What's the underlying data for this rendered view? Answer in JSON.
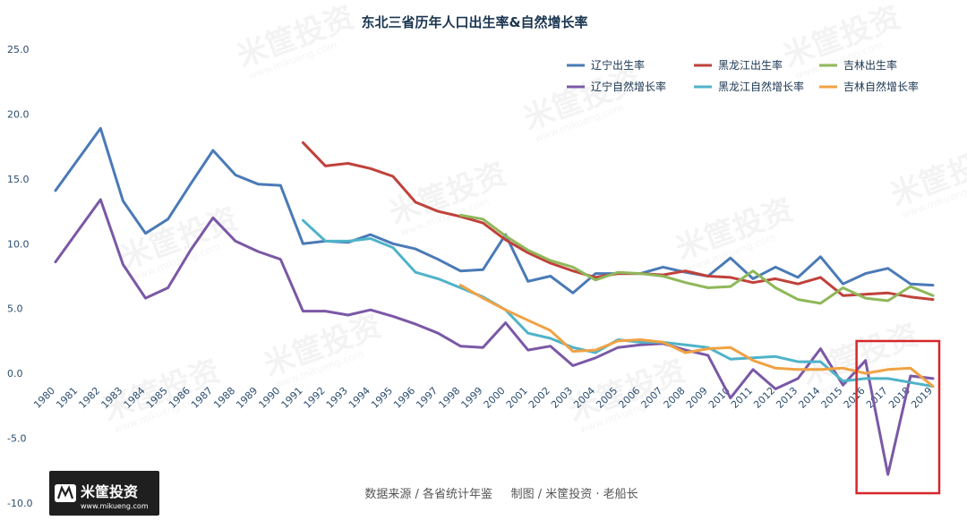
{
  "chart_data": {
    "type": "line",
    "title": "东北三省历年人口出生率&自然增长率",
    "source_note": "数据来源 / 各省统计年鉴     制图 / 米筐投资 · 老船长",
    "brand": {
      "name": "米筐投资",
      "url": "www.mikueng.com"
    },
    "watermark": {
      "name": "米筐投资",
      "url": "www.mikueng.com"
    },
    "ylim": [
      -10,
      25
    ],
    "yticks": [
      "25.0",
      "20.0",
      "15.0",
      "10.0",
      "5.0",
      "0.0",
      "-5.0",
      "-10.0"
    ],
    "x": [
      "1980",
      "1981",
      "1982",
      "1983",
      "1984",
      "1985",
      "1986",
      "1987",
      "1988",
      "1989",
      "1990",
      "1991",
      "1992",
      "1993",
      "1994",
      "1995",
      "1996",
      "1997",
      "1998",
      "1999",
      "2000",
      "2001",
      "2002",
      "2003",
      "2004",
      "2005",
      "2006",
      "2007",
      "2008",
      "2009",
      "2010",
      "2011",
      "2012",
      "2013",
      "2014",
      "2015",
      "2016",
      "2017",
      "2018",
      "2019"
    ],
    "grid": false,
    "legend": "top-right",
    "highlight_box": {
      "from": "2016",
      "to": "2019",
      "color": "#d7262b"
    },
    "series": [
      {
        "name": "辽宁出生率",
        "color": "#4a7ab7",
        "values": [
          14.1,
          16.5,
          18.9,
          13.3,
          10.8,
          11.9,
          14.6,
          17.2,
          15.3,
          14.6,
          14.5,
          10.0,
          10.2,
          10.1,
          10.7,
          10.0,
          9.6,
          8.8,
          7.9,
          8.0,
          10.7,
          7.1,
          7.5,
          6.2,
          7.7,
          7.7,
          7.7,
          8.2,
          7.8,
          7.5,
          8.9,
          7.3,
          8.2,
          7.4,
          9.0,
          6.9,
          7.7,
          8.1,
          6.9,
          6.8
        ]
      },
      {
        "name": "黑龙江出生率",
        "color": "#c0413b",
        "values": [
          null,
          null,
          null,
          null,
          null,
          null,
          null,
          null,
          null,
          null,
          null,
          17.8,
          16.0,
          16.2,
          15.8,
          15.2,
          13.2,
          12.5,
          12.1,
          11.6,
          10.3,
          9.3,
          8.5,
          7.9,
          7.4,
          7.7,
          7.7,
          7.6,
          7.9,
          7.5,
          7.4,
          7.0,
          7.3,
          6.9,
          7.4,
          6.0,
          6.1,
          6.2,
          5.9,
          5.7
        ]
      },
      {
        "name": "吉林出生率",
        "color": "#8fb85a",
        "values": [
          null,
          null,
          null,
          null,
          null,
          null,
          null,
          null,
          null,
          null,
          null,
          null,
          null,
          null,
          null,
          null,
          null,
          null,
          12.2,
          11.9,
          10.6,
          9.5,
          8.7,
          8.2,
          7.2,
          7.8,
          7.7,
          7.5,
          7.0,
          6.6,
          6.7,
          7.9,
          6.6,
          5.7,
          5.4,
          6.6,
          5.8,
          5.6,
          6.7,
          6.0
        ]
      },
      {
        "name": "辽宁自然增长率",
        "color": "#7b58a6",
        "values": [
          8.6,
          11.0,
          13.4,
          8.4,
          5.8,
          6.6,
          9.5,
          12.0,
          10.2,
          9.4,
          8.8,
          4.8,
          4.8,
          4.5,
          4.9,
          4.4,
          3.8,
          3.1,
          2.1,
          2.0,
          3.9,
          1.8,
          2.1,
          0.6,
          1.2,
          2.0,
          2.2,
          2.3,
          1.8,
          1.4,
          -1.9,
          0.3,
          -1.2,
          -0.4,
          1.9,
          -0.9,
          1.0,
          -7.8,
          -0.2,
          -0.4
        ]
      },
      {
        "name": "黑龙江自然增长率",
        "color": "#4fb3c9",
        "values": [
          null,
          null,
          null,
          null,
          null,
          null,
          null,
          null,
          null,
          null,
          null,
          11.8,
          10.2,
          10.2,
          10.4,
          9.7,
          7.8,
          7.3,
          6.6,
          5.9,
          4.9,
          3.1,
          2.7,
          2.0,
          1.6,
          2.6,
          2.4,
          2.4,
          2.2,
          2.0,
          1.1,
          1.2,
          1.3,
          0.9,
          0.9,
          -0.6,
          -0.4,
          -0.4,
          -0.7,
          -1.0
        ]
      },
      {
        "name": "吉林自然增长率",
        "color": "#f0a244",
        "values": [
          null,
          null,
          null,
          null,
          null,
          null,
          null,
          null,
          null,
          null,
          null,
          null,
          null,
          null,
          null,
          null,
          null,
          null,
          6.8,
          5.8,
          4.9,
          4.1,
          3.3,
          1.7,
          1.8,
          2.5,
          2.6,
          2.4,
          1.6,
          1.9,
          2.0,
          1.0,
          0.4,
          0.3,
          0.3,
          0.4,
          0.0,
          0.3,
          0.4,
          -1.0
        ]
      }
    ]
  }
}
